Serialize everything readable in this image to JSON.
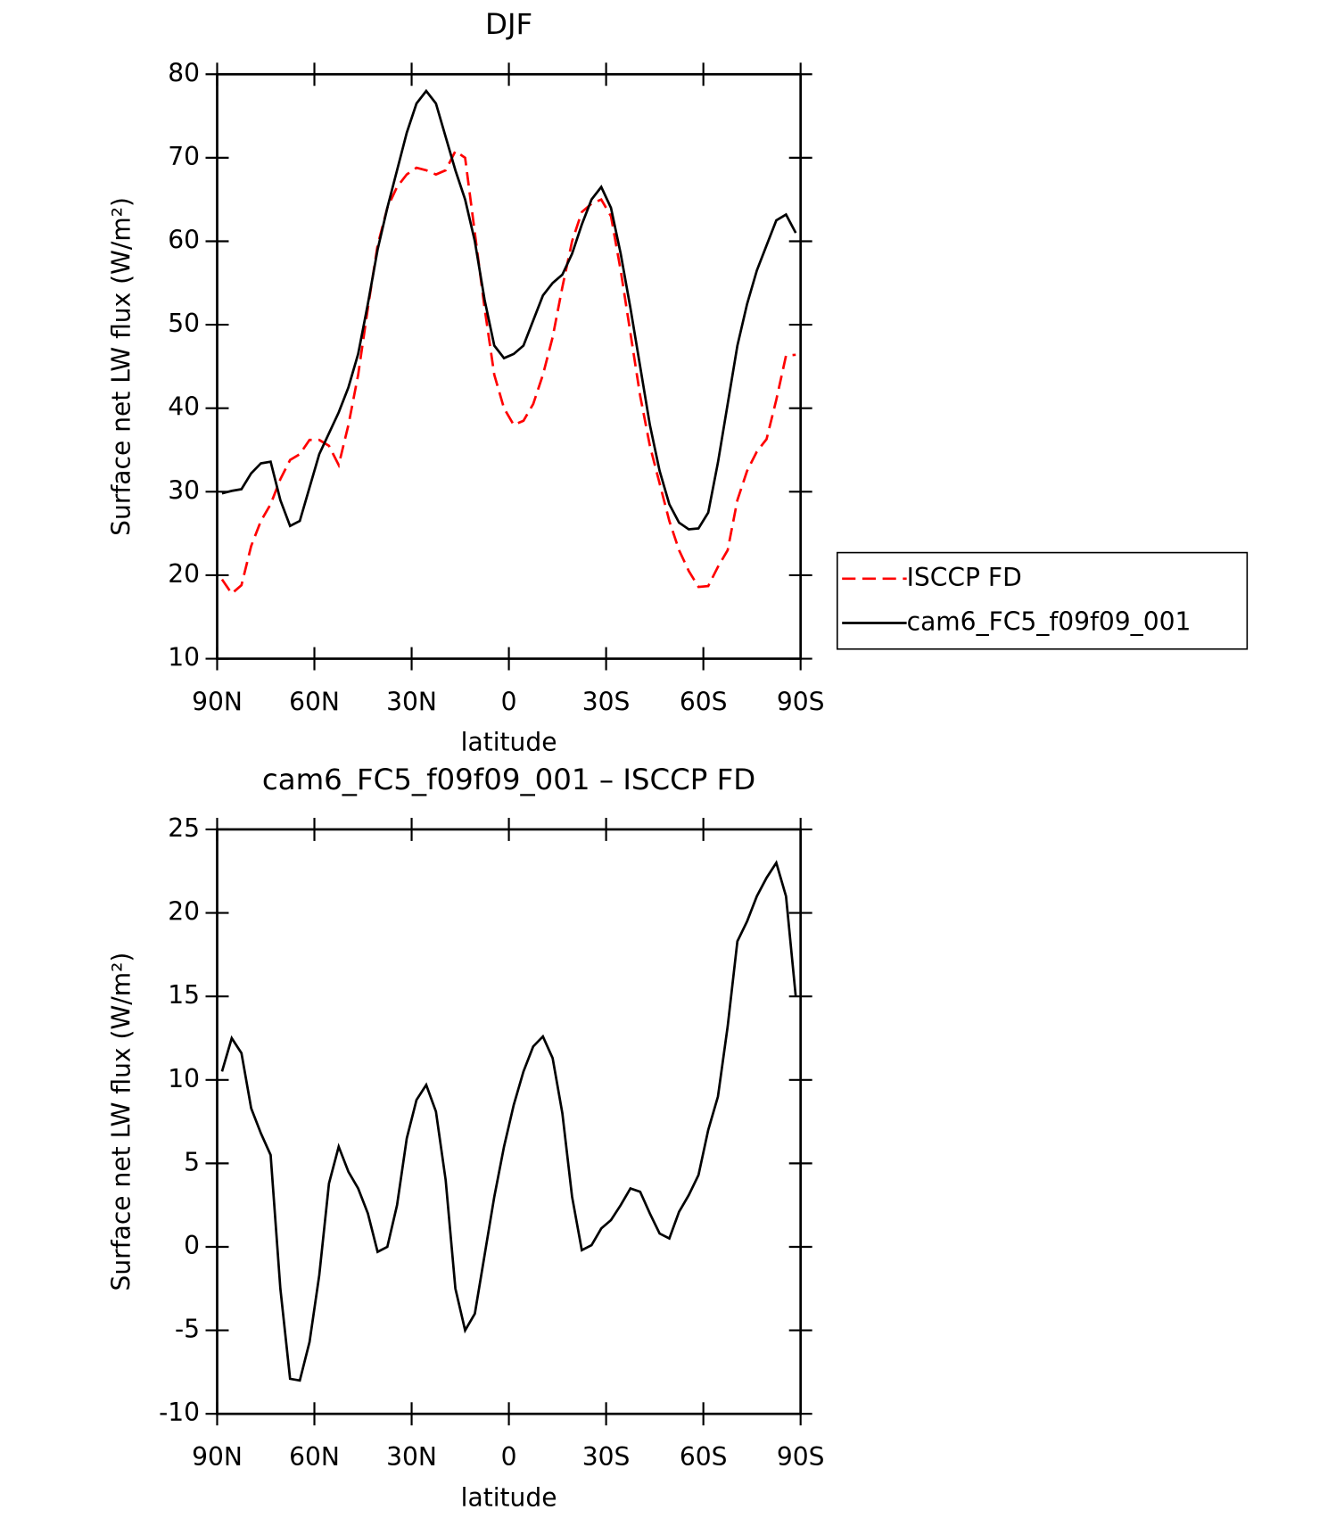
{
  "chart_data": [
    {
      "type": "line",
      "title": "DJF",
      "xlabel": "latitude",
      "ylabel": "Surface net LW flux (W/m²)",
      "x": [
        88.5,
        85.5,
        82.5,
        79.5,
        76.5,
        73.5,
        70.5,
        67.5,
        64.5,
        61.5,
        58.5,
        55.5,
        52.5,
        49.5,
        46.5,
        43.5,
        40.5,
        37.5,
        34.5,
        31.5,
        28.5,
        25.5,
        22.5,
        19.5,
        16.5,
        13.5,
        10.5,
        7.5,
        4.5,
        1.5,
        -1.5,
        -4.5,
        -7.5,
        -10.5,
        -13.5,
        -16.5,
        -19.5,
        -22.5,
        -25.5,
        -28.5,
        -31.5,
        -34.5,
        -37.5,
        -40.5,
        -43.5,
        -46.5,
        -49.5,
        -52.5,
        -55.5,
        -58.5,
        -61.5,
        -64.5,
        -67.5,
        -70.5,
        -73.5,
        -76.5,
        -79.5,
        -82.5,
        -85.5,
        -88.5
      ],
      "series": [
        {
          "name": "ISCCP FD",
          "color": "#ff0000",
          "linestyle": "dashed",
          "values": [
            19.5,
            17.8,
            18.8,
            23.5,
            26.5,
            28.5,
            31.5,
            33.8,
            34.5,
            36.2,
            36.2,
            35.5,
            33.2,
            38,
            44,
            52,
            59.5,
            64,
            66.5,
            68,
            68.8,
            68.5,
            68,
            68.5,
            70.8,
            70,
            61,
            52,
            44,
            40,
            38,
            38.5,
            40.5,
            44,
            48.5,
            54.5,
            60,
            63.5,
            64.5,
            65,
            63,
            56.5,
            49,
            41.5,
            35.5,
            31,
            26.5,
            23,
            20.5,
            18.6,
            18.7,
            21,
            23,
            29,
            32.5,
            34.8,
            36.3,
            41,
            46.3,
            46.4
          ]
        },
        {
          "name": "cam6_FC5_f09f09_001",
          "color": "#000000",
          "linestyle": "solid",
          "values": [
            29.8,
            30.1,
            30.3,
            32.2,
            33.4,
            33.6,
            29,
            25.9,
            26.5,
            30.5,
            34.5,
            37,
            39.5,
            42.5,
            46.5,
            52.5,
            59,
            64,
            68.5,
            73,
            76.5,
            78,
            76.5,
            72.5,
            68.5,
            65,
            60,
            53,
            47.5,
            46,
            46.5,
            47.5,
            50.5,
            53.5,
            55,
            56,
            58.5,
            62,
            65,
            66.5,
            64,
            58.5,
            52,
            45,
            38,
            32.5,
            28.5,
            26.3,
            25.5,
            25.6,
            27.5,
            33.5,
            40.5,
            47.5,
            52.5,
            56.5,
            59.5,
            62.5,
            63.2,
            61
          ]
        }
      ],
      "xlim": [
        90,
        -90
      ],
      "xticks": [
        {
          "value": 90,
          "label": "90N"
        },
        {
          "value": 60,
          "label": "60N"
        },
        {
          "value": 30,
          "label": "30N"
        },
        0,
        {
          "value": -30,
          "label": "30S"
        },
        {
          "value": -60,
          "label": "60S"
        },
        {
          "value": -90,
          "label": "90S"
        }
      ],
      "ylim": [
        10,
        80
      ],
      "yticks": [
        10,
        20,
        30,
        40,
        50,
        60,
        70,
        80
      ],
      "legend": "right"
    },
    {
      "type": "line",
      "title": "cam6_FC5_f09f09_001 – ISCCP FD",
      "xlabel": "latitude",
      "ylabel": "Surface net LW flux (W/m²)",
      "x": [
        88.5,
        85.5,
        82.5,
        79.5,
        76.5,
        73.5,
        70.5,
        67.5,
        64.5,
        61.5,
        58.5,
        55.5,
        52.5,
        49.5,
        46.5,
        43.5,
        40.5,
        37.5,
        34.5,
        31.5,
        28.5,
        25.5,
        22.5,
        19.5,
        16.5,
        13.5,
        10.5,
        7.5,
        4.5,
        1.5,
        -1.5,
        -4.5,
        -7.5,
        -10.5,
        -13.5,
        -16.5,
        -19.5,
        -22.5,
        -25.5,
        -28.5,
        -31.5,
        -34.5,
        -37.5,
        -40.5,
        -43.5,
        -46.5,
        -49.5,
        -52.5,
        -55.5,
        -58.5,
        -61.5,
        -64.5,
        -67.5,
        -70.5,
        -73.5,
        -76.5,
        -79.5,
        -82.5,
        -85.5,
        -88.5
      ],
      "series": [
        {
          "color": "#000000",
          "linestyle": "solid",
          "values": [
            10.5,
            12.5,
            11.6,
            8.3,
            6.8,
            5.5,
            -2.5,
            -7.9,
            -8,
            -5.7,
            -1.7,
            3.8,
            6,
            4.5,
            3.5,
            2,
            -0.3,
            0,
            2.5,
            6.5,
            8.8,
            9.7,
            8.1,
            4,
            -2.5,
            -5,
            -4,
            -0.5,
            3,
            6,
            8.5,
            10.5,
            12,
            12.6,
            11.3,
            8,
            3,
            -0.2,
            0.1,
            1.1,
            1.6,
            2.5,
            3.5,
            3.3,
            2,
            0.8,
            0.5,
            2.1,
            3.1,
            4.3,
            7,
            9,
            13.2,
            18.3,
            19.5,
            21,
            22.1,
            23,
            21,
            15
          ]
        }
      ],
      "xlim": [
        90,
        -90
      ],
      "xticks": [
        {
          "value": 90,
          "label": "90N"
        },
        {
          "value": 60,
          "label": "60N"
        },
        {
          "value": 30,
          "label": "30N"
        },
        0,
        {
          "value": -30,
          "label": "30S"
        },
        {
          "value": -60,
          "label": "60S"
        },
        {
          "value": -90,
          "label": "90S"
        }
      ],
      "ylim": [
        -10,
        25
      ],
      "yticks": [
        -10,
        -5,
        0,
        5,
        10,
        15,
        20,
        25
      ]
    }
  ]
}
